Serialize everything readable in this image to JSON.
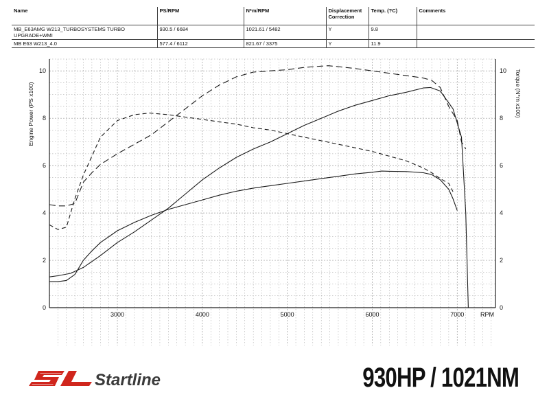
{
  "table": {
    "headers": [
      "Name",
      "PS/RPM",
      "N*m/RPM",
      "Displacement Correction",
      "Temp. (?C)",
      "Comments"
    ],
    "rows": [
      [
        "MB_E63AMG W213_TURBOSYSTEMS TURBO UPGRADE+WMI",
        "930.5 / 6684",
        "1021.61 / 5482",
        "Y",
        "9.8",
        ""
      ],
      [
        "MB E63 W213_4.0",
        "577.4 / 6112",
        "821.67 / 3375",
        "Y",
        "11.9",
        ""
      ]
    ]
  },
  "brand": {
    "name": "Startline",
    "monogram": "SL"
  },
  "headline": "930HP / 1021NM",
  "colors": {
    "line": "#1a1a1a",
    "grid": "#9a9a9a",
    "logo_red": "#d0261d",
    "logo_dark": "#3a3a3a"
  },
  "chart_data": {
    "type": "line",
    "xlabel": "RPM",
    "ylabel_left": "Engine Power (PS x100)",
    "ylabel_right": "Torque (N*m x100)",
    "xlim": [
      2200,
      7450
    ],
    "ylim": [
      0,
      10.5
    ],
    "xticks": [
      3000,
      4000,
      5000,
      6000,
      7000
    ],
    "yticks": [
      0,
      2,
      4,
      6,
      8,
      10
    ],
    "grid": true,
    "series": [
      {
        "axis": "left",
        "dash": "solid",
        "x": [
          2200,
          2300,
          2450,
          2600,
          2800,
          3000,
          3200,
          3400,
          3600,
          3800,
          4000,
          4200,
          4400,
          4600,
          4800,
          5000,
          5200,
          5400,
          5600,
          5800,
          6000,
          6200,
          6400,
          6600,
          6684,
          6800,
          6950,
          7050,
          7100,
          7130
        ],
        "y": [
          1.3,
          1.35,
          1.45,
          1.7,
          2.2,
          2.75,
          3.2,
          3.7,
          4.2,
          4.8,
          5.4,
          5.9,
          6.35,
          6.7,
          7.0,
          7.35,
          7.7,
          8.0,
          8.3,
          8.55,
          8.75,
          8.95,
          9.1,
          9.28,
          9.3,
          9.15,
          8.4,
          7.2,
          4.0,
          0
        ]
      },
      {
        "axis": "left",
        "dash": "solid",
        "x": [
          2200,
          2300,
          2400,
          2500,
          2600,
          2700,
          2800,
          3000,
          3200,
          3400,
          3600,
          3800,
          4000,
          4200,
          4400,
          4600,
          4800,
          5000,
          5200,
          5400,
          5600,
          5800,
          6000,
          6112,
          6200,
          6400,
          6600,
          6700,
          6800,
          6900,
          6950,
          7000
        ],
        "y": [
          1.1,
          1.1,
          1.15,
          1.4,
          2.0,
          2.4,
          2.75,
          3.25,
          3.6,
          3.9,
          4.15,
          4.35,
          4.55,
          4.75,
          4.92,
          5.05,
          5.15,
          5.25,
          5.35,
          5.45,
          5.55,
          5.65,
          5.72,
          5.77,
          5.76,
          5.75,
          5.7,
          5.62,
          5.4,
          5.0,
          4.6,
          4.1
        ]
      },
      {
        "axis": "right",
        "dash": "long",
        "x": [
          2200,
          2300,
          2400,
          2500,
          2600,
          2700,
          2800,
          3000,
          3200,
          3400,
          3600,
          3800,
          4000,
          4200,
          4400,
          4600,
          4800,
          5000,
          5200,
          5400,
          5482,
          5600,
          5800,
          6000,
          6200,
          6400,
          6600,
          6700,
          6800,
          6900,
          7000,
          7050,
          7100
        ],
        "y": [
          4.35,
          4.3,
          4.3,
          4.4,
          5.3,
          5.7,
          6.05,
          6.5,
          6.9,
          7.3,
          7.85,
          8.4,
          8.95,
          9.4,
          9.75,
          9.95,
          10.0,
          10.05,
          10.15,
          10.2,
          10.22,
          10.18,
          10.1,
          10.0,
          9.9,
          9.8,
          9.7,
          9.6,
          9.3,
          8.5,
          7.9,
          7.0,
          6.7
        ]
      },
      {
        "axis": "right",
        "dash": "medium",
        "x": [
          2200,
          2300,
          2400,
          2500,
          2600,
          2700,
          2800,
          3000,
          3200,
          3375,
          3600,
          3800,
          4000,
          4200,
          4400,
          4600,
          4800,
          5000,
          5200,
          5400,
          5600,
          5800,
          6000,
          6200,
          6400,
          6600,
          6700,
          6800,
          6900,
          6950
        ],
        "y": [
          3.5,
          3.3,
          3.4,
          4.6,
          5.6,
          6.4,
          7.2,
          7.9,
          8.15,
          8.22,
          8.15,
          8.05,
          7.95,
          7.85,
          7.75,
          7.6,
          7.5,
          7.35,
          7.2,
          7.05,
          6.9,
          6.75,
          6.6,
          6.4,
          6.2,
          5.9,
          5.7,
          5.45,
          5.25,
          4.9
        ]
      }
    ]
  }
}
